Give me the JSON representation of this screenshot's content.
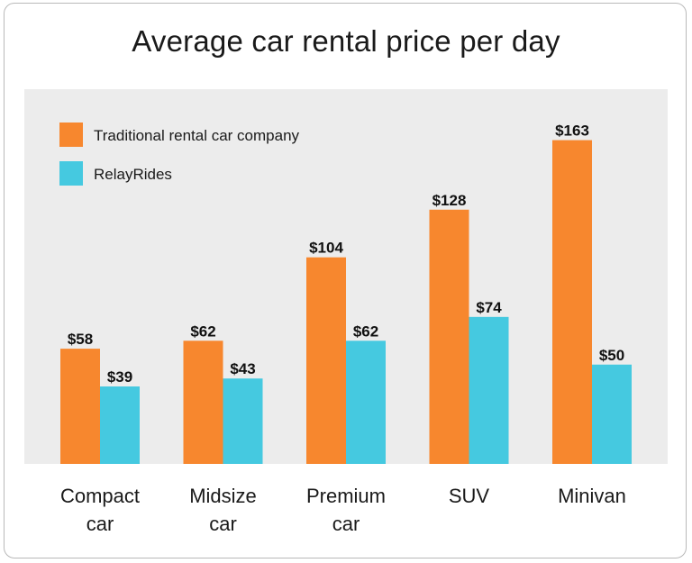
{
  "chart_data": {
    "type": "bar",
    "title": "Average car rental price per day",
    "categories": [
      [
        "Compact",
        "car"
      ],
      [
        "Midsize",
        "car"
      ],
      [
        "Premium",
        "car"
      ],
      [
        "SUV"
      ],
      [
        "Minivan"
      ]
    ],
    "series": [
      {
        "name": "Traditional rental car company",
        "color": "#f7872e",
        "values": [
          58,
          62,
          104,
          128,
          163
        ],
        "labels": [
          "$58",
          "$62",
          "$104",
          "$128",
          "$163"
        ]
      },
      {
        "name": "RelayRides",
        "color": "#45c9e0",
        "values": [
          39,
          43,
          62,
          74,
          50
        ],
        "labels": [
          "$39",
          "$43",
          "$62",
          "$74",
          "$50"
        ]
      }
    ],
    "xlabel": "",
    "ylabel": "",
    "ylim": [
      0,
      170
    ],
    "grid": false,
    "legend": "top-left",
    "plot_background": "#ececec"
  }
}
